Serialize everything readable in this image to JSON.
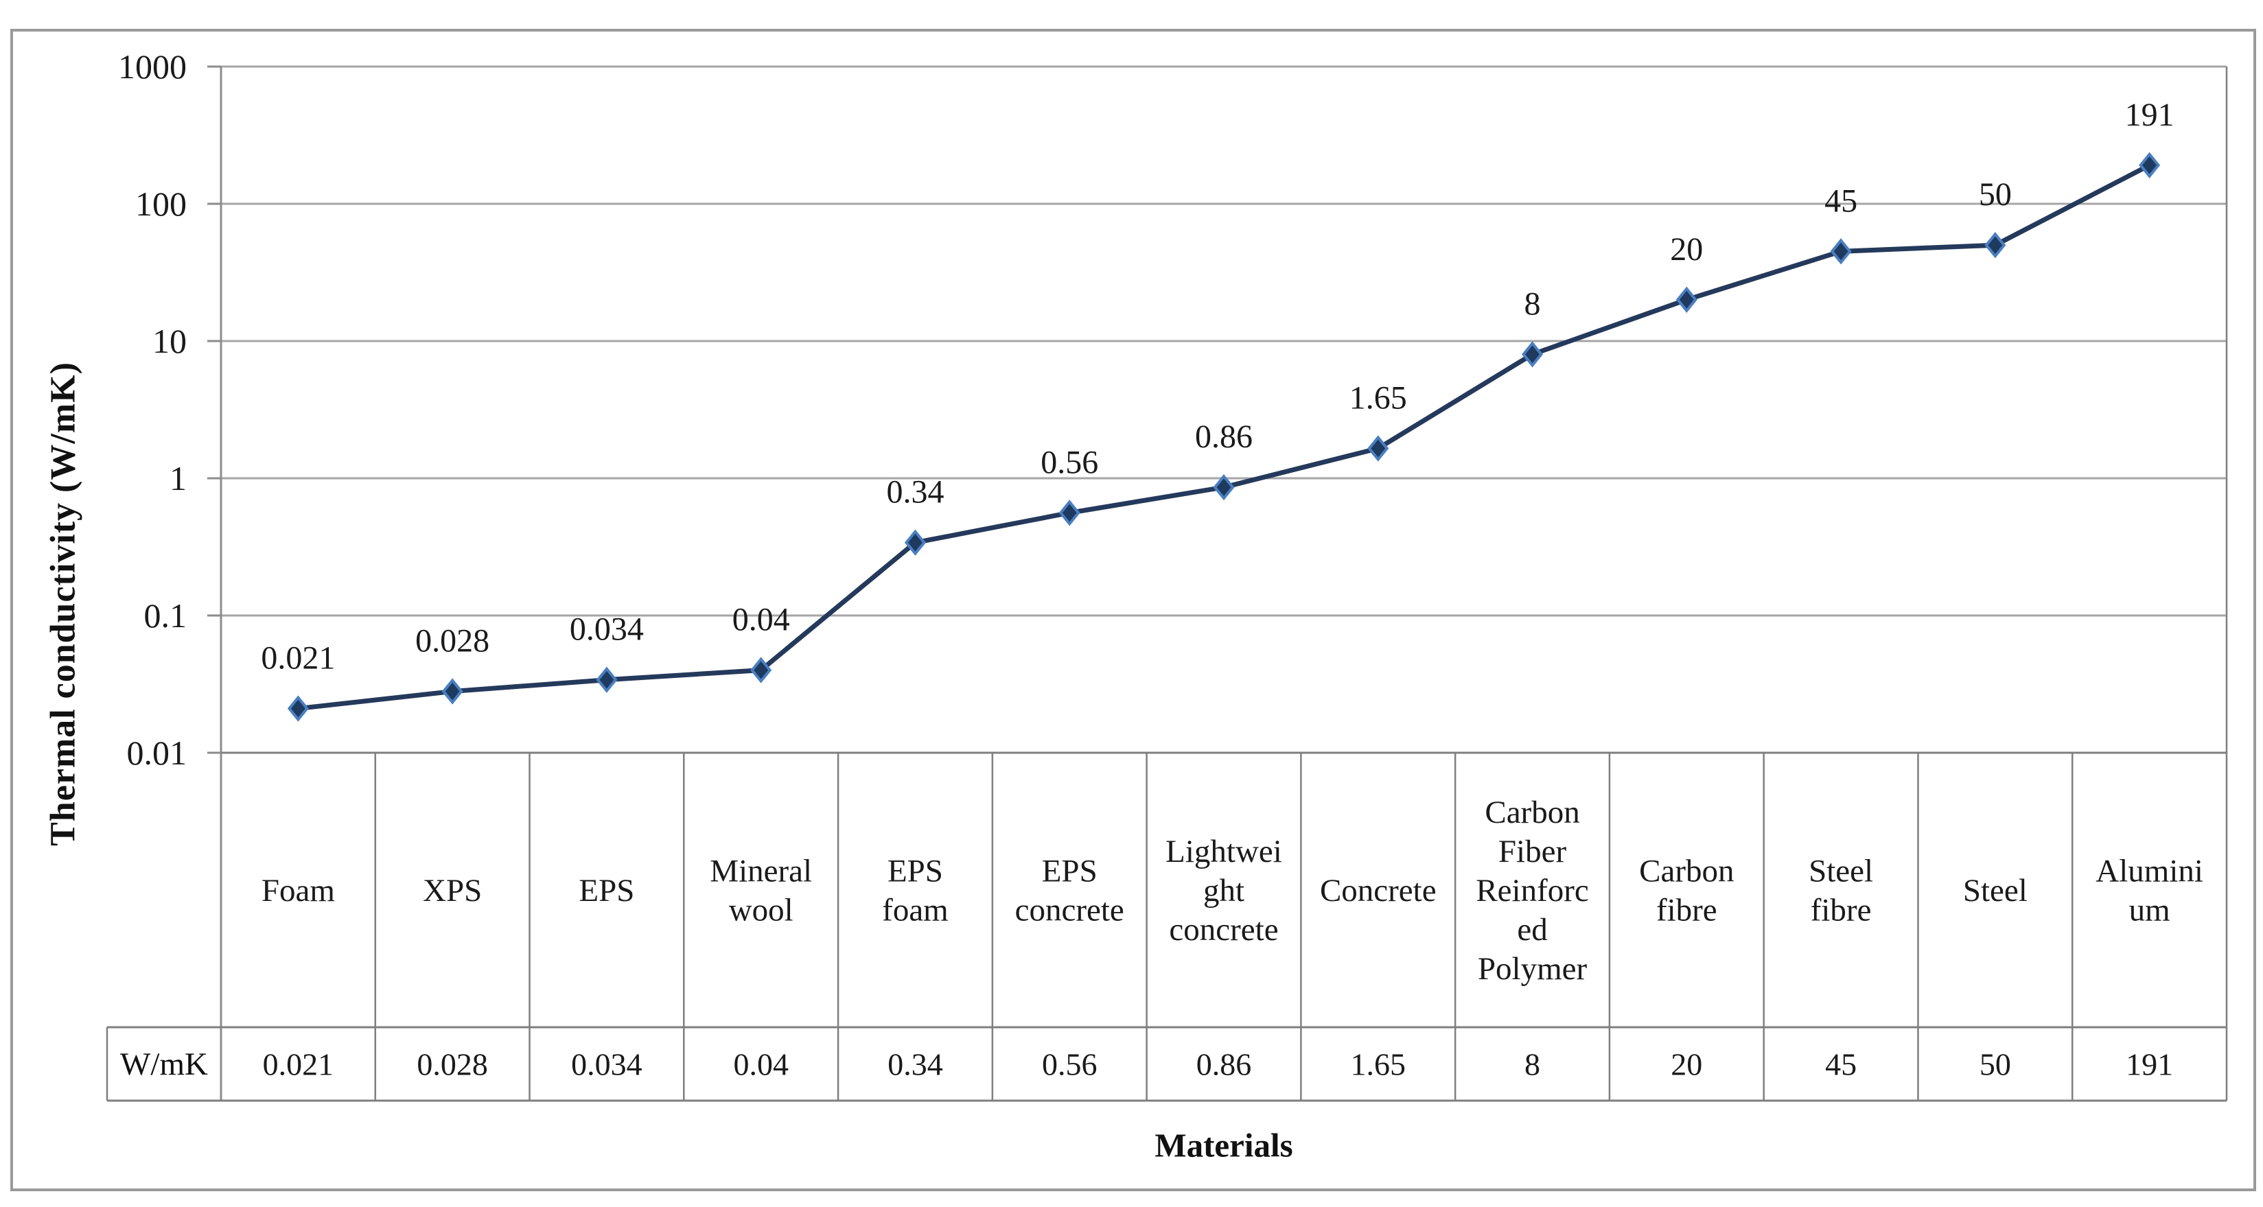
{
  "figure": {
    "y_axis_title": "Thermal conductivity (W/mK)",
    "x_axis_title": "Materials",
    "row_header": "W/mK"
  },
  "chart_data": {
    "type": "line",
    "title": "",
    "xlabel": "Materials",
    "ylabel": "Thermal conductivity (W/mK)",
    "y_scale": "log",
    "ylim": [
      0.01,
      1000
    ],
    "yticks": [
      {
        "value": 1000,
        "label": "1000"
      },
      {
        "value": 100,
        "label": "100"
      },
      {
        "value": 10,
        "label": "10"
      },
      {
        "value": 1,
        "label": "1"
      },
      {
        "value": 0.1,
        "label": "0.1"
      },
      {
        "value": 0.01,
        "label": "0.01"
      }
    ],
    "grid": "horizontal-gridlines",
    "legend": "none",
    "marker": "diamond",
    "categories": [
      "Foam",
      "XPS",
      "EPS",
      "Mineral wool",
      "EPS foam",
      "EPS concrete",
      "Lightweight concrete",
      "Concrete",
      "Carbon Fiber Reinforced Polymer",
      "Carbon fibre",
      "Steel fibre",
      "Steel",
      "Aluminium"
    ],
    "category_label_lines": [
      [
        "Foam"
      ],
      [
        "XPS"
      ],
      [
        "EPS"
      ],
      [
        "Mineral",
        "wool"
      ],
      [
        "EPS",
        "foam"
      ],
      [
        "EPS",
        "concrete"
      ],
      [
        "Lightwei",
        "ght",
        "concrete"
      ],
      [
        "Concrete"
      ],
      [
        "Carbon",
        "Fiber",
        "Reinforc",
        "ed",
        "Polymer"
      ],
      [
        "Carbon",
        "fibre"
      ],
      [
        "Steel",
        "fibre"
      ],
      [
        "Steel"
      ],
      [
        "Alumini",
        "um"
      ]
    ],
    "series": [
      {
        "name": "W/mK",
        "values": [
          0.021,
          0.028,
          0.034,
          0.04,
          0.34,
          0.56,
          0.86,
          1.65,
          8,
          20,
          45,
          50,
          191
        ]
      }
    ],
    "value_labels": [
      "0.021",
      "0.028",
      "0.034",
      "0.04",
      "0.34",
      "0.56",
      "0.86",
      "1.65",
      "8",
      "20",
      "45",
      "50",
      "191"
    ],
    "data_table_row": {
      "header": "W/mK",
      "values": [
        "0.021",
        "0.028",
        "0.034",
        "0.04",
        "0.34",
        "0.56",
        "0.86",
        "1.65",
        "8",
        "20",
        "45",
        "50",
        "191"
      ]
    },
    "colors": {
      "line": "#24395b",
      "marker_fill": "#1e3a5f",
      "marker_edge": "#4a7fc1",
      "gridline": "#a6a6a6",
      "axis": "#8c8c8c",
      "table_border": "#7f7f7f",
      "frame": "#9a9a9a",
      "text": "#1a1a1a"
    }
  }
}
